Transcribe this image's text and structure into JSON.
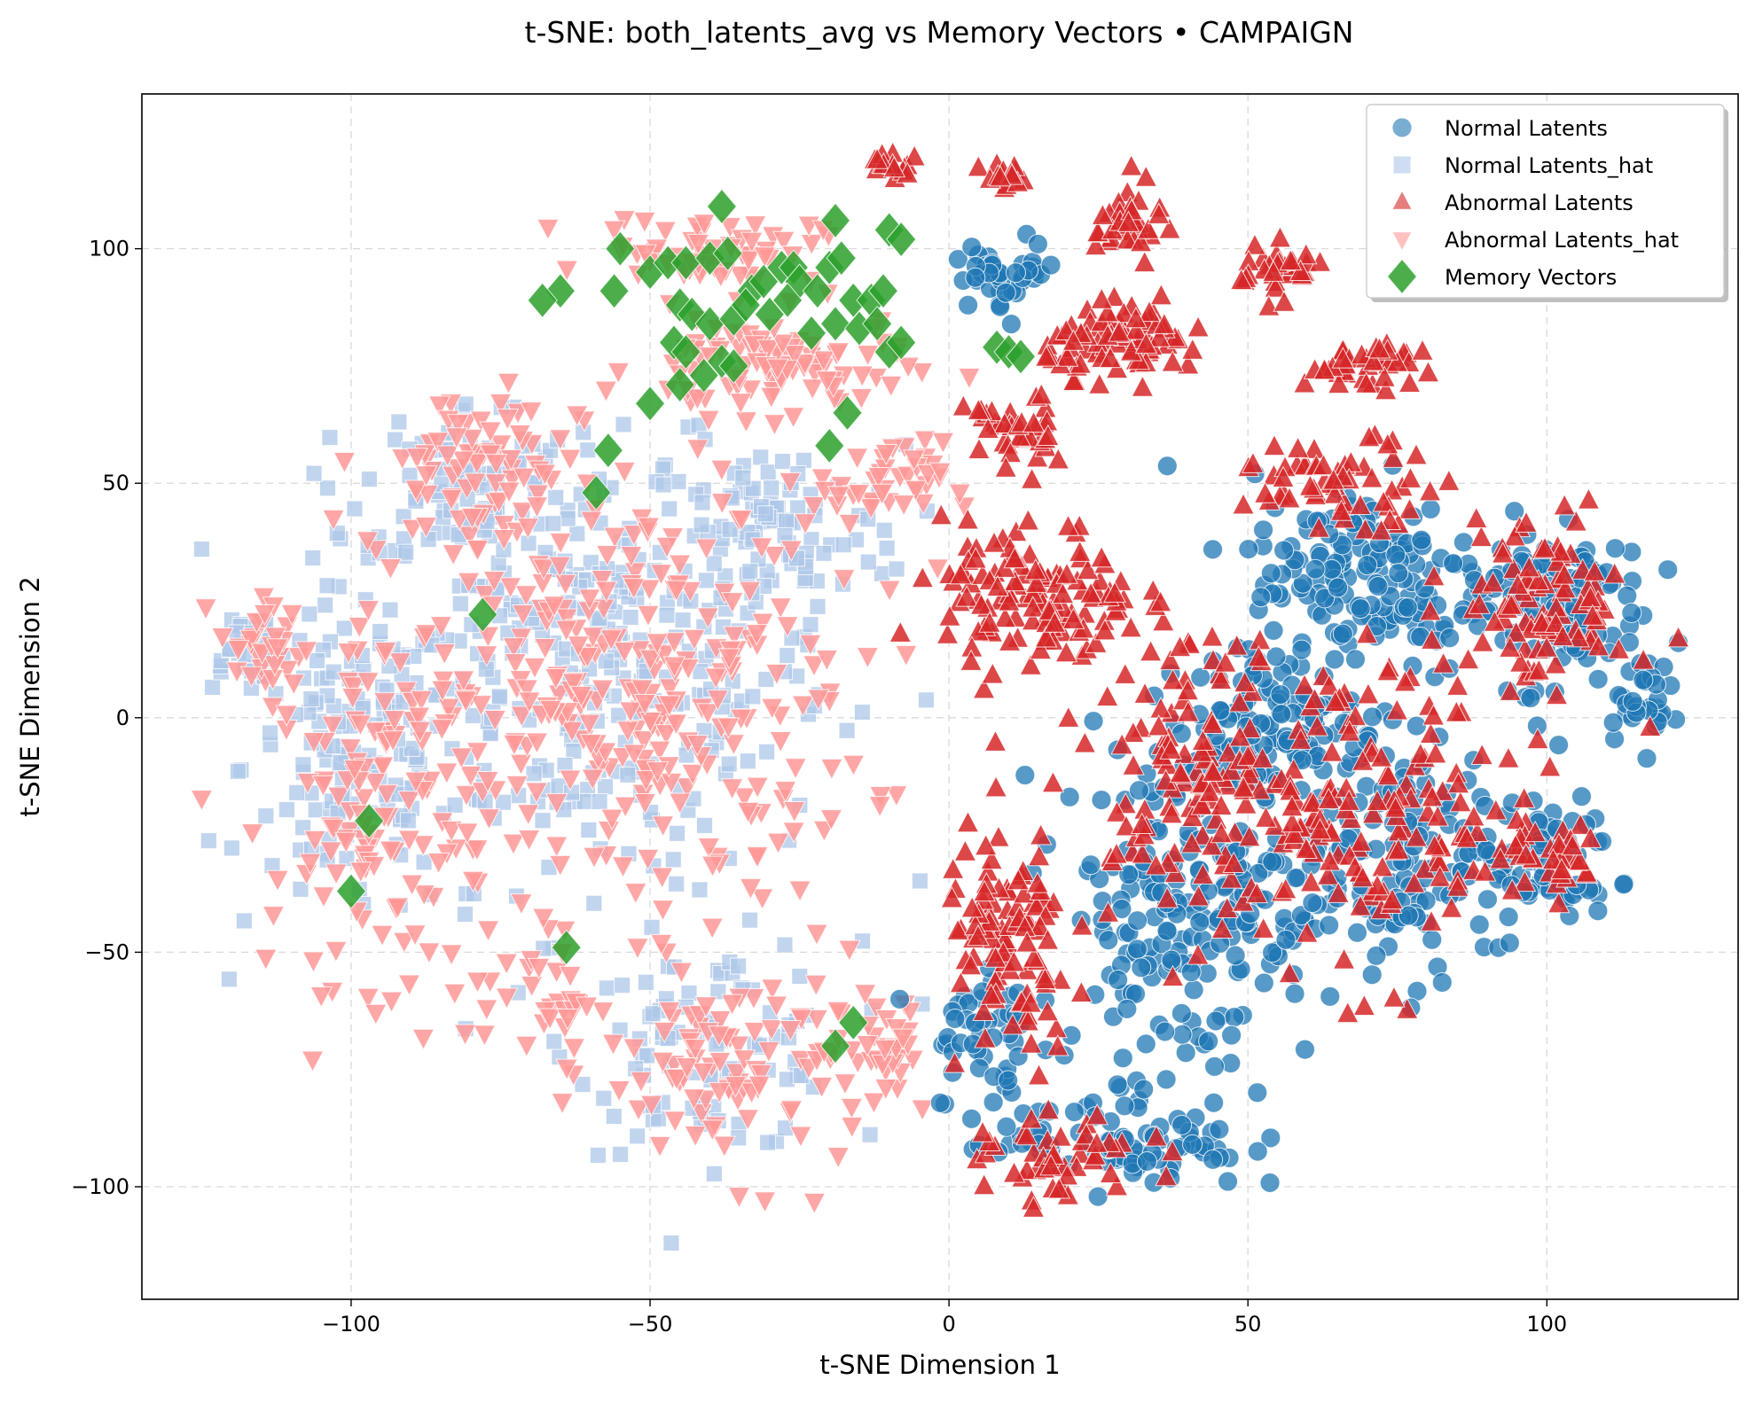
{
  "chart_data": {
    "type": "scatter",
    "title": "t-SNE: both_latents_avg vs Memory Vectors • CAMPAIGN",
    "xlabel": "t-SNE Dimension 1",
    "ylabel": "t-SNE Dimension 2",
    "xlim": [
      -135,
      132
    ],
    "ylim": [
      -124,
      133
    ],
    "xticks": [
      -100,
      -50,
      0,
      50,
      100
    ],
    "yticks": [
      -100,
      -50,
      0,
      50,
      100
    ],
    "xtick_labels": [
      "−100",
      "−50",
      "0",
      "50",
      "100"
    ],
    "ytick_labels": [
      "−100",
      "−50",
      "0",
      "50",
      "100"
    ],
    "grid": true,
    "legend_position": "top-right",
    "series": [
      {
        "name": "Normal Latents",
        "marker": "circle",
        "color": "#1f77b4",
        "clusters": [
          {
            "cx": 70,
            "cy": 30,
            "rx": 22,
            "ry": 25,
            "n": 160
          },
          {
            "cx": 40,
            "cy": -40,
            "rx": 25,
            "ry": 40,
            "n": 200
          },
          {
            "cx": 75,
            "cy": -30,
            "rx": 30,
            "ry": 28,
            "n": 160
          },
          {
            "cx": 100,
            "cy": 25,
            "rx": 18,
            "ry": 20,
            "n": 110
          },
          {
            "cx": 100,
            "cy": -30,
            "rx": 12,
            "ry": 15,
            "n": 50
          },
          {
            "cx": 30,
            "cy": -90,
            "rx": 22,
            "ry": 12,
            "n": 80
          },
          {
            "cx": 10,
            "cy": 95,
            "rx": 10,
            "ry": 8,
            "n": 40
          },
          {
            "cx": 55,
            "cy": 0,
            "rx": 20,
            "ry": 15,
            "n": 90
          },
          {
            "cx": 115,
            "cy": 5,
            "rx": 6,
            "ry": 10,
            "n": 30
          },
          {
            "cx": 5,
            "cy": -70,
            "rx": 10,
            "ry": 25,
            "n": 50
          }
        ]
      },
      {
        "name": "Normal Latents_hat",
        "marker": "square",
        "color": "#aec7e8",
        "clusters": [
          {
            "cx": -60,
            "cy": 10,
            "rx": 45,
            "ry": 50,
            "n": 320
          },
          {
            "cx": -100,
            "cy": -10,
            "rx": 20,
            "ry": 40,
            "n": 130
          },
          {
            "cx": -40,
            "cy": -70,
            "rx": 25,
            "ry": 25,
            "n": 100
          },
          {
            "cx": -30,
            "cy": 40,
            "rx": 25,
            "ry": 20,
            "n": 90
          },
          {
            "cx": -80,
            "cy": 50,
            "rx": 20,
            "ry": 20,
            "n": 80
          },
          {
            "cx": -118,
            "cy": 15,
            "rx": 8,
            "ry": 10,
            "n": 30
          }
        ]
      },
      {
        "name": "Abnormal Latents",
        "marker": "triangle-up",
        "color": "#d62728",
        "clusters": [
          {
            "cx": 15,
            "cy": 25,
            "rx": 18,
            "ry": 18,
            "n": 130
          },
          {
            "cx": 30,
            "cy": 80,
            "rx": 15,
            "ry": 8,
            "n": 90
          },
          {
            "cx": 10,
            "cy": -50,
            "rx": 12,
            "ry": 30,
            "n": 100
          },
          {
            "cx": 40,
            "cy": -10,
            "rx": 20,
            "ry": 30,
            "n": 120
          },
          {
            "cx": 70,
            "cy": -20,
            "rx": 30,
            "ry": 40,
            "n": 170
          },
          {
            "cx": 100,
            "cy": 25,
            "rx": 15,
            "ry": 20,
            "n": 90
          },
          {
            "cx": 100,
            "cy": -30,
            "rx": 12,
            "ry": 12,
            "n": 40
          },
          {
            "cx": 55,
            "cy": 95,
            "rx": 8,
            "ry": 6,
            "n": 35
          },
          {
            "cx": 30,
            "cy": 105,
            "rx": 6,
            "ry": 10,
            "n": 35
          },
          {
            "cx": -10,
            "cy": 118,
            "rx": 5,
            "ry": 3,
            "n": 15
          },
          {
            "cx": 10,
            "cy": 115,
            "rx": 5,
            "ry": 4,
            "n": 15
          },
          {
            "cx": 10,
            "cy": 60,
            "rx": 8,
            "ry": 10,
            "n": 40
          },
          {
            "cx": 70,
            "cy": 75,
            "rx": 12,
            "ry": 5,
            "n": 40
          },
          {
            "cx": 20,
            "cy": -95,
            "rx": 15,
            "ry": 10,
            "n": 50
          },
          {
            "cx": 65,
            "cy": 50,
            "rx": 20,
            "ry": 10,
            "n": 60
          }
        ]
      },
      {
        "name": "Abnormal Latents_hat",
        "marker": "triangle-down",
        "color": "#ff9896",
        "clusters": [
          {
            "cx": -55,
            "cy": 5,
            "rx": 45,
            "ry": 50,
            "n": 320
          },
          {
            "cx": -95,
            "cy": -20,
            "rx": 20,
            "ry": 40,
            "n": 120
          },
          {
            "cx": -35,
            "cy": -75,
            "rx": 25,
            "ry": 25,
            "n": 100
          },
          {
            "cx": -30,
            "cy": 75,
            "rx": 25,
            "ry": 12,
            "n": 100
          },
          {
            "cx": -40,
            "cy": 100,
            "rx": 20,
            "ry": 8,
            "n": 60
          },
          {
            "cx": -80,
            "cy": 55,
            "rx": 20,
            "ry": 18,
            "n": 70
          },
          {
            "cx": -10,
            "cy": 50,
            "rx": 10,
            "ry": 10,
            "n": 40
          },
          {
            "cx": -115,
            "cy": 15,
            "rx": 8,
            "ry": 12,
            "n": 30
          },
          {
            "cx": -10,
            "cy": -70,
            "rx": 10,
            "ry": 12,
            "n": 30
          },
          {
            "cx": -70,
            "cy": -60,
            "rx": 12,
            "ry": 12,
            "n": 30
          }
        ]
      },
      {
        "name": "Memory Vectors",
        "marker": "diamond",
        "color": "#2ca02c",
        "points": [
          [
            -38,
            109
          ],
          [
            -55,
            100
          ],
          [
            -19,
            106
          ],
          [
            -10,
            104
          ],
          [
            -8,
            102
          ],
          [
            -65,
            91
          ],
          [
            -68,
            89
          ],
          [
            -56,
            91
          ],
          [
            -50,
            95
          ],
          [
            -47,
            97
          ],
          [
            -44,
            97
          ],
          [
            -40,
            98
          ],
          [
            -37,
            99
          ],
          [
            -33,
            91
          ],
          [
            -31,
            93
          ],
          [
            -28,
            96
          ],
          [
            -26,
            96
          ],
          [
            -25,
            93
          ],
          [
            -22,
            91
          ],
          [
            -20,
            96
          ],
          [
            -18,
            98
          ],
          [
            -16,
            89
          ],
          [
            -13,
            89
          ],
          [
            -11,
            91
          ],
          [
            -45,
            88
          ],
          [
            -43,
            86
          ],
          [
            -40,
            84
          ],
          [
            -36,
            85
          ],
          [
            -34,
            88
          ],
          [
            -30,
            86
          ],
          [
            -27,
            89
          ],
          [
            -23,
            82
          ],
          [
            -19,
            84
          ],
          [
            -15,
            83
          ],
          [
            -12,
            84
          ],
          [
            -46,
            80
          ],
          [
            -44,
            78
          ],
          [
            -38,
            76
          ],
          [
            -36,
            75
          ],
          [
            -41,
            73
          ],
          [
            -45,
            71
          ],
          [
            -50,
            67
          ],
          [
            -10,
            78
          ],
          [
            -8,
            80
          ],
          [
            8,
            79
          ],
          [
            10,
            78
          ],
          [
            12,
            77
          ],
          [
            -17,
            65
          ],
          [
            -20,
            58
          ],
          [
            -57,
            57
          ],
          [
            -59,
            48
          ],
          [
            -78,
            22
          ],
          [
            -97,
            -22
          ],
          [
            -100,
            -37
          ],
          [
            -64,
            -49
          ],
          [
            -16,
            -65
          ],
          [
            -19,
            -70
          ]
        ]
      }
    ]
  }
}
